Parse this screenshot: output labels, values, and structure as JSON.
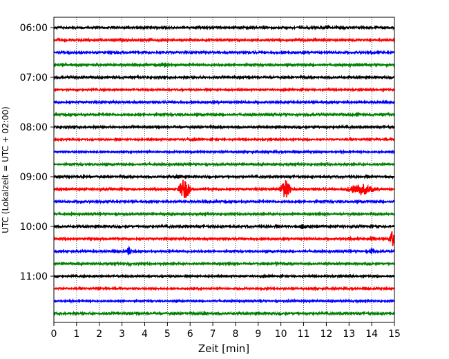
{
  "chart_data": {
    "type": "line",
    "title": "",
    "xlabel": "Zeit  [min]",
    "ylabel": "UTC (Lokalzeit = UTC + 02:00)",
    "xlim": [
      0,
      15
    ],
    "x_ticks": [
      "0",
      "1",
      "2",
      "3",
      "4",
      "5",
      "6",
      "7",
      "8",
      "9",
      "10",
      "11",
      "12",
      "13",
      "14",
      "15"
    ],
    "y_ticks": [
      "06:00",
      "07:00",
      "08:00",
      "09:00",
      "10:00",
      "11:00"
    ],
    "grid": "vertical dotted",
    "trace_interval_minutes": 15,
    "colors": [
      "#000000",
      "#ff0000",
      "#0000ff",
      "#008000"
    ],
    "traces": [
      {
        "time": "06:00",
        "color": "#000000",
        "noise": 1.0,
        "events": [
          {
            "t": 4.4,
            "amp": 2,
            "dur": 0.3
          },
          {
            "t": 12.0,
            "amp": 3,
            "dur": 0.3
          }
        ]
      },
      {
        "time": "06:15",
        "color": "#ff0000",
        "noise": 1.0,
        "events": [
          {
            "t": 1.5,
            "amp": 2,
            "dur": 0.5
          }
        ]
      },
      {
        "time": "06:30",
        "color": "#0000ff",
        "noise": 1.0,
        "events": []
      },
      {
        "time": "06:45",
        "color": "#008000",
        "noise": 1.0,
        "events": [
          {
            "t": 4.9,
            "amp": 3,
            "dur": 0.4
          }
        ]
      },
      {
        "time": "07:00",
        "color": "#000000",
        "noise": 1.0,
        "events": [
          {
            "t": 1.1,
            "amp": 2,
            "dur": 0.3
          }
        ]
      },
      {
        "time": "07:15",
        "color": "#ff0000",
        "noise": 0.8,
        "events": [
          {
            "t": 7.7,
            "amp": 2,
            "dur": 0.2
          }
        ]
      },
      {
        "time": "07:30",
        "color": "#0000ff",
        "noise": 1.0,
        "events": [
          {
            "t": 8.2,
            "amp": 2,
            "dur": 0.4
          }
        ]
      },
      {
        "time": "07:45",
        "color": "#008000",
        "noise": 1.0,
        "events": [
          {
            "t": 13.4,
            "amp": 3,
            "dur": 0.2
          }
        ]
      },
      {
        "time": "08:00",
        "color": "#000000",
        "noise": 1.0,
        "events": [
          {
            "t": 11.5,
            "amp": 2,
            "dur": 0.3
          }
        ]
      },
      {
        "time": "08:15",
        "color": "#ff0000",
        "noise": 0.8,
        "events": [
          {
            "t": 5.9,
            "amp": 2,
            "dur": 0.2
          }
        ]
      },
      {
        "time": "08:30",
        "color": "#0000ff",
        "noise": 0.8,
        "events": []
      },
      {
        "time": "08:45",
        "color": "#008000",
        "noise": 0.9,
        "events": []
      },
      {
        "time": "09:00",
        "color": "#000000",
        "noise": 1.0,
        "events": [
          {
            "t": 1.3,
            "amp": 3,
            "dur": 0.3
          },
          {
            "t": 5.5,
            "amp": 3,
            "dur": 0.3
          }
        ]
      },
      {
        "time": "09:15",
        "color": "#ff0000",
        "noise": 1.0,
        "events": [
          {
            "t": 5.75,
            "amp": 17,
            "dur": 0.35
          },
          {
            "t": 10.2,
            "amp": 15,
            "dur": 0.35
          },
          {
            "t": 13.5,
            "amp": 9,
            "dur": 0.9
          }
        ]
      },
      {
        "time": "09:30",
        "color": "#0000ff",
        "noise": 1.0,
        "events": [
          {
            "t": 1.2,
            "amp": 2,
            "dur": 0.3
          }
        ]
      },
      {
        "time": "09:45",
        "color": "#008000",
        "noise": 0.9,
        "events": [
          {
            "t": 4.9,
            "amp": 2,
            "dur": 0.2
          }
        ]
      },
      {
        "time": "10:00",
        "color": "#000000",
        "noise": 1.0,
        "events": [
          {
            "t": 11.0,
            "amp": 5,
            "dur": 0.3
          }
        ]
      },
      {
        "time": "10:15",
        "color": "#ff0000",
        "noise": 1.0,
        "events": [
          {
            "t": 13.0,
            "amp": 3,
            "dur": 0.2
          },
          {
            "t": 14.0,
            "amp": 4,
            "dur": 0.3
          },
          {
            "t": 14.9,
            "amp": 12,
            "dur": 0.2
          }
        ]
      },
      {
        "time": "10:30",
        "color": "#0000ff",
        "noise": 0.9,
        "events": [
          {
            "t": 3.3,
            "amp": 8,
            "dur": 0.15
          },
          {
            "t": 14.0,
            "amp": 7,
            "dur": 0.15
          }
        ]
      },
      {
        "time": "10:45",
        "color": "#008000",
        "noise": 0.9,
        "events": [
          {
            "t": 3.3,
            "amp": 3,
            "dur": 0.2
          },
          {
            "t": 9.8,
            "amp": 3,
            "dur": 0.2
          }
        ]
      },
      {
        "time": "11:00",
        "color": "#000000",
        "noise": 0.8,
        "events": []
      },
      {
        "time": "11:15",
        "color": "#ff0000",
        "noise": 0.8,
        "events": []
      },
      {
        "time": "11:30",
        "color": "#0000ff",
        "noise": 0.8,
        "events": []
      },
      {
        "time": "11:45",
        "color": "#008000",
        "noise": 1.0,
        "events": [
          {
            "t": 6.6,
            "amp": 3,
            "dur": 0.3
          }
        ]
      }
    ]
  }
}
